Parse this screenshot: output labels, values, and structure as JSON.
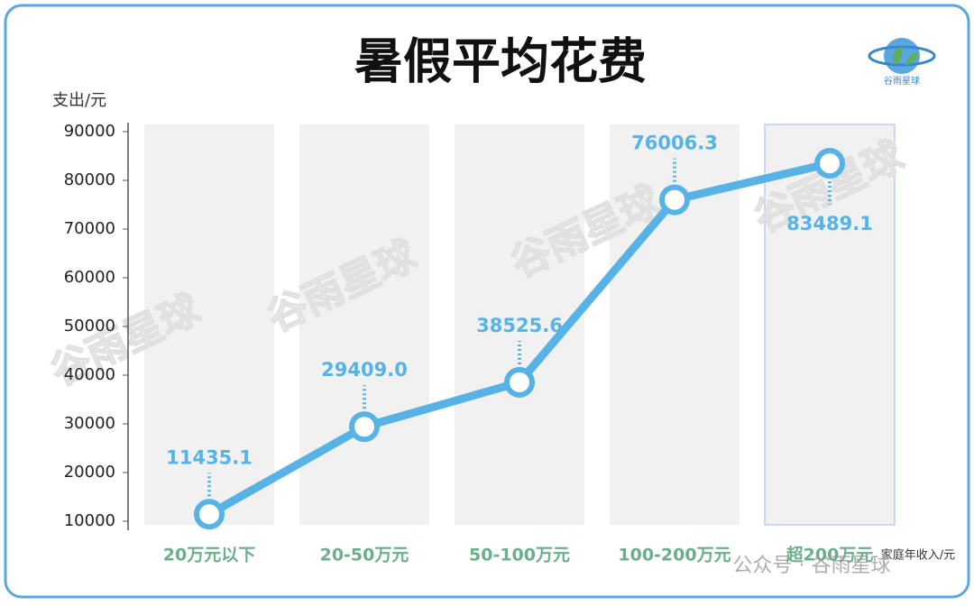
{
  "chart_data": {
    "type": "line",
    "title": "暑假平均花费",
    "y_label": "支出/元",
    "x_label": "家庭年收入/元",
    "brand": "谷雨星球",
    "watermark": "谷雨星球",
    "source": "公众号 · 谷雨星球",
    "categories": [
      "20万元以下",
      "20-50万元",
      "50-100万元",
      "100-200万元",
      "超200万元"
    ],
    "values": [
      11435.1,
      29409.0,
      38525.6,
      76006.3,
      83489.1
    ],
    "value_labels": [
      "11435.1",
      "29409.0",
      "38525.6",
      "76006.3",
      "83489.1"
    ],
    "color": "#57b3e6",
    "ylim": [
      10000,
      90000
    ],
    "yticks": [
      10000,
      20000,
      30000,
      40000,
      50000,
      60000,
      70000,
      80000,
      90000
    ]
  }
}
